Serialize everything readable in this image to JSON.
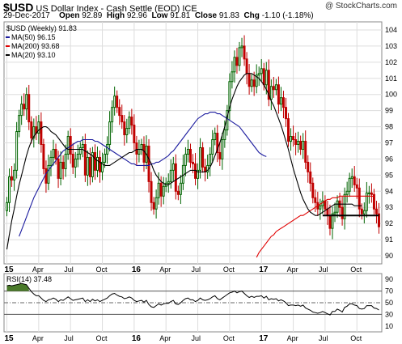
{
  "header": {
    "symbol": "$USD",
    "name": "US Dollar Index - Cash Settle (EOD) ICE",
    "date": "29-Dec-2017",
    "open_label": "Open",
    "open": "92.89",
    "high_label": "High",
    "high": "92.96",
    "low_label": "Low",
    "low": "91.81",
    "close_label": "Close",
    "close": "91.83",
    "chg_label": "Chg",
    "chg": "-1.10 (-1.18%)",
    "brand": "@ StockCharts.com"
  },
  "colors": {
    "candle_up": "#006400",
    "candle_down": "#c00000",
    "ma50": "#1a1a9e",
    "ma200": "#e00000",
    "ma20": "#000000",
    "rsi_fill": "#4a7a2a",
    "grid": "#dddddd"
  },
  "chart_data": [
    {
      "type": "candlestick",
      "title": "$USD (Weekly) 91.83",
      "legend": [
        {
          "name": "MA(50) 96.15",
          "color": "#1a1a9e"
        },
        {
          "name": "MA(200) 93.68",
          "color": "#e00000"
        },
        {
          "name": "MA(20) 93.10",
          "color": "#000000"
        }
      ],
      "legend_placement": "top-left",
      "ylim": [
        89.5,
        104.5
      ],
      "y_ticks": [
        90,
        91,
        92,
        93,
        94,
        95,
        96,
        97,
        98,
        99,
        100,
        101,
        102,
        103,
        104
      ],
      "x_tick_labels": [
        "15",
        "Apr",
        "Jul",
        "Oct",
        "16",
        "Apr",
        "Jul",
        "Oct",
        "17",
        "Apr",
        "Jul",
        "Oct"
      ],
      "grid": true,
      "close": [
        93.3,
        94.9,
        94.7,
        95.3,
        97.7,
        98.7,
        99.4,
        99.1,
        100.0,
        98.3,
        97.3,
        98.0,
        97.6,
        98.3,
        96.9,
        95.4,
        94.5,
        95.6,
        96.1,
        96.6,
        96.0,
        94.8,
        95.8,
        95.4,
        96.3,
        97.4,
        96.3,
        95.5,
        96.0,
        96.3,
        96.7,
        96.9,
        95.0,
        96.1,
        94.9,
        96.4,
        95.3,
        96.1,
        95.2,
        95.8,
        96.3,
        96.9,
        98.3,
        99.2,
        99.9,
        99.2,
        98.7,
        98.3,
        97.5,
        97.9,
        98.6,
        98.1,
        97.0,
        96.3,
        96.6,
        96.9,
        95.8,
        96.8,
        94.6,
        93.3,
        92.9,
        93.6,
        94.5,
        93.7,
        94.3,
        94.5,
        94.6,
        95.3,
        95.7,
        94.0,
        93.8,
        94.5,
        95.6,
        96.3,
        96.6,
        95.8,
        95.7,
        94.8,
        95.3,
        96.7,
        95.5,
        95.2,
        95.6,
        96.3,
        97.2,
        97.6,
        96.4,
        96.0,
        97.2,
        97.8,
        99.0,
        100.8,
        101.4,
        102.3,
        101.8,
        102.9,
        103.0,
        102.2,
        101.3,
        100.5,
        100.9,
        100.5,
        101.2,
        101.3,
        101.6,
        100.6,
        101.5,
        99.7,
        100.5,
        100.3,
        100.6,
        99.4,
        99.8,
        99.2,
        98.5,
        97.1,
        97.4,
        97.2,
        96.9,
        97.1,
        96.6,
        97.1,
        95.8,
        95.2,
        94.5,
        93.6,
        93.3,
        92.9,
        93.1,
        93.4,
        92.9,
        92.5,
        91.7,
        92.6,
        92.7,
        93.4,
        93.0,
        92.3,
        93.8,
        94.0,
        94.8,
        94.9,
        94.4,
        94.2,
        92.9,
        92.6,
        92.8,
        93.9,
        93.9,
        93.8,
        92.9,
        92.6,
        91.8
      ],
      "ma50_start": 5,
      "ma50": [
        91.2,
        91.6,
        92.0,
        92.4,
        92.8,
        93.2,
        93.6,
        93.9,
        94.2,
        94.5,
        94.8,
        95.1,
        95.3,
        95.5,
        95.7,
        95.9,
        96.1,
        96.3,
        96.5,
        96.6,
        96.7,
        96.8,
        96.9,
        97.0,
        97.1,
        97.1,
        97.2,
        97.2,
        97.2,
        97.2,
        97.2,
        97.1,
        97.1,
        97.0,
        96.9,
        96.8,
        96.7,
        96.6,
        96.5,
        96.4,
        96.3,
        96.2,
        96.1,
        96.0,
        95.9,
        95.8,
        95.7,
        95.7,
        95.6,
        95.6,
        95.6,
        95.6,
        95.6,
        95.6,
        95.7,
        95.7,
        95.8,
        95.8,
        95.9,
        96.0,
        96.1,
        96.2,
        96.4,
        96.5,
        96.7,
        96.9,
        97.1,
        97.3,
        97.5,
        97.7,
        97.9,
        98.1,
        98.3,
        98.5,
        98.6,
        98.7,
        98.8,
        98.8,
        98.9,
        98.9,
        98.9,
        98.8,
        98.8,
        98.7,
        98.6,
        98.5,
        98.4,
        98.3,
        98.2,
        98.1,
        98.0,
        97.8,
        97.6,
        97.4,
        97.2,
        97.0,
        96.8,
        96.6,
        96.4,
        96.3,
        96.2,
        96.15
      ],
      "ma200_start": 102,
      "ma200": [
        89.9,
        90.2,
        90.4,
        90.6,
        90.8,
        91.0,
        91.2,
        91.3,
        91.5,
        91.6,
        91.7,
        91.8,
        91.9,
        92.0,
        92.1,
        92.2,
        92.3,
        92.4,
        92.5,
        92.5,
        92.6,
        92.7,
        92.8,
        92.9,
        93.0,
        93.1,
        93.2,
        93.3,
        93.4,
        93.5,
        93.5,
        93.6,
        93.6,
        93.6,
        93.7,
        93.7,
        93.7,
        93.7,
        93.7,
        93.7,
        93.7,
        93.7,
        93.7,
        93.7,
        93.7,
        93.7,
        93.7,
        93.7,
        93.68
      ],
      "ma20": [
        90.4,
        91.3,
        92.2,
        92.9,
        93.7,
        94.4,
        95.0,
        95.6,
        96.2,
        96.7,
        97.1,
        97.4,
        97.6,
        97.8,
        97.9,
        98.0,
        98.0,
        97.9,
        97.7,
        97.6,
        97.5,
        97.3,
        97.1,
        96.9,
        96.7,
        96.6,
        96.6,
        96.6,
        96.6,
        96.6,
        96.6,
        96.6,
        96.5,
        96.4,
        96.3,
        96.2,
        96.0,
        95.9,
        95.8,
        95.7,
        95.6,
        95.6,
        95.6,
        95.7,
        95.8,
        95.9,
        96.0,
        96.1,
        96.2,
        96.3,
        96.4,
        96.4,
        96.5,
        96.6,
        96.6,
        96.6,
        96.5,
        96.3,
        96.0,
        95.7,
        95.3,
        95.0,
        94.8,
        94.6,
        94.5,
        94.4,
        94.4,
        94.5,
        94.6,
        94.7,
        94.8,
        94.9,
        95.0,
        95.1,
        95.2,
        95.3,
        95.3,
        95.3,
        95.2,
        95.2,
        95.2,
        95.2,
        95.3,
        95.5,
        95.8,
        96.2,
        96.6,
        97.0,
        97.5,
        98.0,
        98.6,
        99.2,
        99.7,
        100.1,
        100.5,
        100.8,
        101.0,
        101.2,
        101.3,
        101.3,
        101.3,
        101.2,
        101.1,
        101.0,
        100.8,
        100.6,
        100.3,
        100.0,
        99.6,
        99.3,
        98.9,
        98.5,
        98.1,
        97.6,
        97.1,
        96.6,
        96.0,
        95.4,
        94.9,
        94.4,
        93.9,
        93.5,
        93.2,
        92.9,
        92.7,
        92.6,
        92.5,
        92.5,
        92.6,
        92.7,
        92.8,
        92.9,
        93.0,
        93.1,
        93.2,
        93.2,
        93.2,
        93.2,
        93.2,
        93.2,
        93.2,
        93.2,
        93.1,
        93.1,
        93.1,
        93.1
      ],
      "support_line": {
        "y": 92.5,
        "from_index": 129,
        "to_index": 151
      }
    },
    {
      "type": "line",
      "title": "RSI(14) 37.48",
      "legend_placement": "top-left",
      "ylim": [
        0,
        100
      ],
      "y_ticks": [
        10,
        30,
        50,
        70,
        90
      ],
      "ref_lines": [
        70,
        50,
        30
      ],
      "x_tick_labels": [
        "15",
        "Apr",
        "Jul",
        "Oct",
        "16",
        "Apr",
        "Jul",
        "Oct",
        "17",
        "Apr",
        "Jul",
        "Oct"
      ],
      "values": [
        79,
        80,
        79,
        80,
        81,
        82,
        83,
        82,
        81,
        75,
        69,
        65,
        62,
        62,
        58,
        54,
        52,
        55,
        56,
        58,
        56,
        52,
        55,
        54,
        57,
        60,
        57,
        54,
        55,
        56,
        57,
        58,
        52,
        55,
        52,
        56,
        53,
        55,
        52,
        54,
        56,
        58,
        62,
        65,
        66,
        63,
        61,
        60,
        57,
        58,
        60,
        58,
        54,
        52,
        53,
        54,
        51,
        54,
        47,
        43,
        42,
        45,
        48,
        46,
        48,
        49,
        49,
        52,
        54,
        48,
        47,
        50,
        54,
        57,
        58,
        55,
        55,
        52,
        54,
        58,
        55,
        54,
        55,
        57,
        60,
        62,
        57,
        55,
        58,
        61,
        64,
        67,
        68,
        70,
        67,
        69,
        70,
        66,
        62,
        59,
        61,
        59,
        61,
        61,
        62,
        58,
        61,
        55,
        57,
        56,
        57,
        53,
        55,
        53,
        50,
        45,
        46,
        46,
        45,
        46,
        44,
        46,
        41,
        39,
        37,
        34,
        33,
        32,
        33,
        35,
        33,
        31,
        29,
        35,
        35,
        39,
        37,
        34,
        42,
        44,
        48,
        48,
        46,
        45,
        40,
        39,
        40,
        45,
        45,
        45,
        41,
        40,
        37.48
      ]
    }
  ]
}
